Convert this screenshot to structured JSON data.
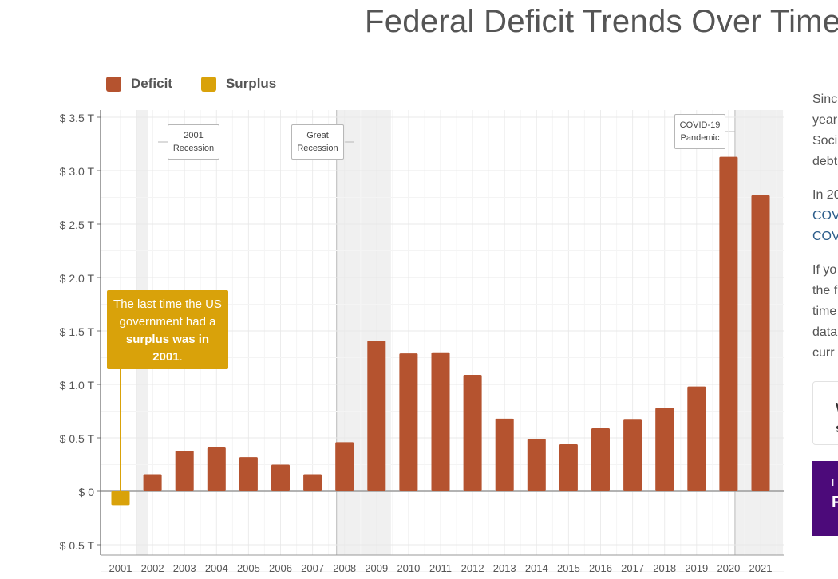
{
  "page": {
    "title": "Federal Deficit Trends Over Time"
  },
  "legend": [
    {
      "label": "Deficit",
      "color": "#b5532f"
    },
    {
      "label": "Surplus",
      "color": "#d9a20a"
    }
  ],
  "callout": {
    "text_before": "The last time the US government had a ",
    "text_bold": "surplus was in 2001",
    "text_after": "."
  },
  "sidebar": {
    "paragraphs": [
      [
        "Sinc",
        "year",
        "Soci",
        "debt"
      ],
      [
        "In 20",
        "COV",
        "COV"
      ],
      [
        "If yo",
        "the f",
        "time",
        "data",
        "curr"
      ]
    ],
    "card_lines": [
      "W",
      "s"
    ],
    "cta_small": "L",
    "cta_big": "F"
  },
  "chart_data": {
    "type": "bar",
    "title": "Federal Deficit Trends Over Time",
    "unit": "trillion USD",
    "categories": [
      "2001",
      "2002",
      "2003",
      "2004",
      "2005",
      "2006",
      "2007",
      "2008",
      "2009",
      "2010",
      "2011",
      "2012",
      "2013",
      "2014",
      "2015",
      "2016",
      "2017",
      "2018",
      "2019",
      "2020",
      "2021"
    ],
    "series": [
      {
        "name": "Deficit",
        "color": "#b5532f",
        "values": [
          null,
          0.16,
          0.38,
          0.41,
          0.32,
          0.25,
          0.16,
          0.46,
          1.41,
          1.29,
          1.3,
          1.09,
          0.68,
          0.49,
          0.44,
          0.59,
          0.67,
          0.78,
          0.98,
          3.13,
          2.77
        ]
      },
      {
        "name": "Surplus",
        "color": "#d9a20a",
        "values": [
          -0.13,
          null,
          null,
          null,
          null,
          null,
          null,
          null,
          null,
          null,
          null,
          null,
          null,
          null,
          null,
          null,
          null,
          null,
          null,
          null,
          null
        ]
      }
    ],
    "y_ticks": [
      -0.5,
      0,
      0.5,
      1.0,
      1.5,
      2.0,
      2.5,
      3.0,
      3.5
    ],
    "y_tick_labels": [
      "$ 0.5 T",
      "$ 0",
      "$ 0.5 T",
      "$ 1.0 T",
      "$ 1.5 T",
      "$ 2.0 T",
      "$ 2.5 T",
      "$ 3.0 T",
      "$ 3.5 T"
    ],
    "ylim": [
      -0.55,
      3.6
    ],
    "grid": true,
    "shaded_periods": [
      {
        "label": "2001 Recession",
        "from": 2001.5,
        "to": 2001.85
      },
      {
        "label": "Great Recession",
        "from": 2007.75,
        "to": 2009.45
      },
      {
        "label": "COVID-19 Pandemic",
        "from": 2020.2,
        "to": 2021.7
      }
    ]
  }
}
